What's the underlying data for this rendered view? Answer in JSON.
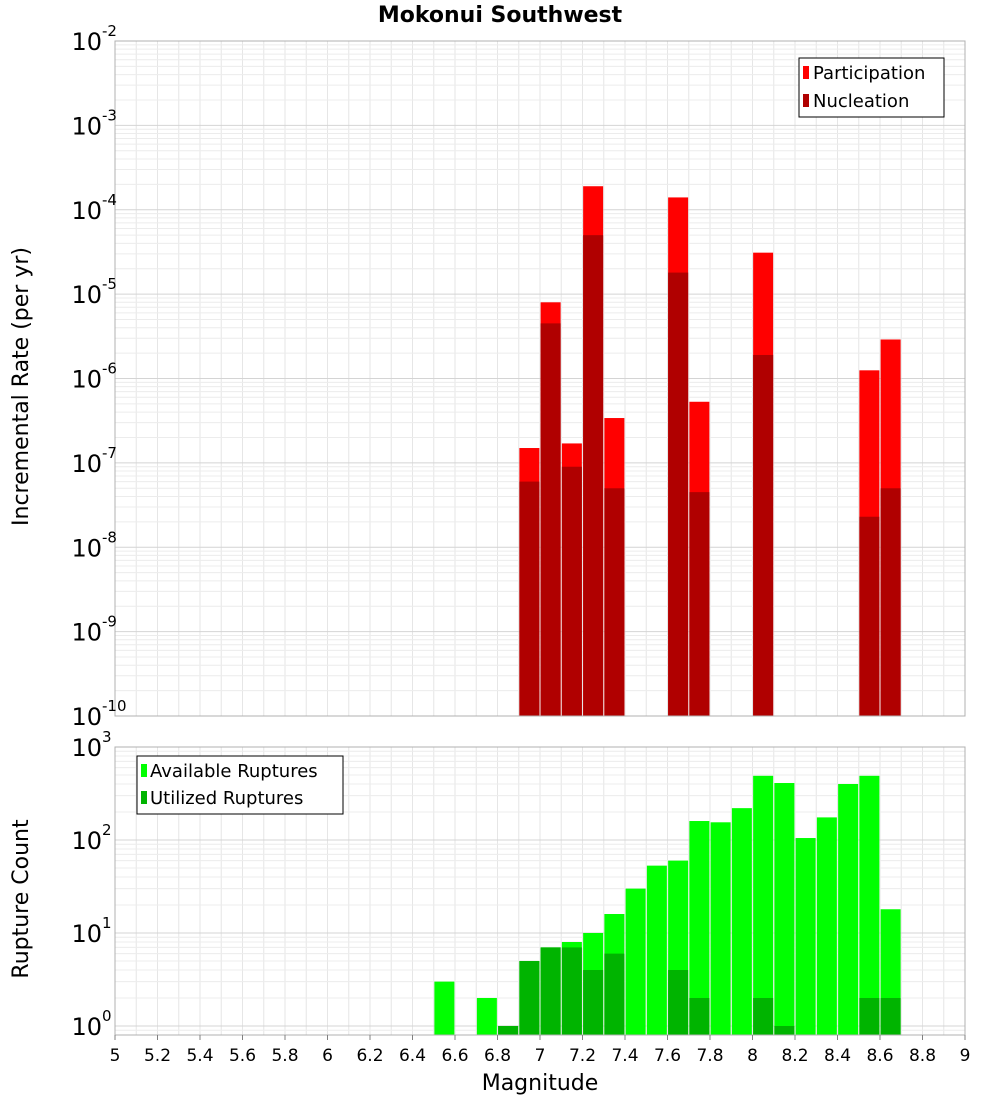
{
  "chart_data": [
    {
      "type": "bar",
      "title": "Mokonui Southwest",
      "ylabel": "Incremental Rate (per yr)",
      "xlabel": "",
      "yscale": "log",
      "ylim": [
        1e-10,
        0.01
      ],
      "xlim": [
        5,
        9
      ],
      "grid": true,
      "legend_position": "top-right",
      "x": [
        6.95,
        7.05,
        7.15,
        7.25,
        7.35,
        7.65,
        7.75,
        8.05,
        8.55,
        8.65
      ],
      "series": [
        {
          "name": "Participation",
          "color": "#ff0000",
          "values": [
            1.5e-07,
            8e-06,
            1.7e-07,
            0.00019,
            3.4e-07,
            0.00014,
            5.3e-07,
            3.1e-05,
            1.25e-06,
            2.9e-06
          ]
        },
        {
          "name": "Nucleation",
          "color": "#b00000",
          "values": [
            6e-08,
            4.5e-06,
            9e-08,
            5e-05,
            5e-08,
            1.8e-05,
            4.5e-08,
            1.9e-06,
            2.3e-08,
            5e-08
          ]
        }
      ],
      "ytick_labels": [
        "10",
        "10",
        "10",
        "10",
        "10",
        "10",
        "10",
        "10",
        "10"
      ],
      "ytick_exponents": [
        "-10",
        "-9",
        "-8",
        "-7",
        "-6",
        "-5",
        "-4",
        "-3",
        "-2"
      ]
    },
    {
      "type": "bar",
      "title": "",
      "ylabel": "Rupture Count",
      "xlabel": "Magnitude",
      "yscale": "log",
      "ylim": [
        0.8,
        1000
      ],
      "xlim": [
        5,
        9
      ],
      "grid": true,
      "legend_position": "top-left",
      "x": [
        6.55,
        6.75,
        6.85,
        6.95,
        7.05,
        7.15,
        7.25,
        7.35,
        7.45,
        7.55,
        7.65,
        7.75,
        7.85,
        7.95,
        8.05,
        8.15,
        8.25,
        8.35,
        8.45,
        8.55,
        8.65
      ],
      "series": [
        {
          "name": "Available Ruptures",
          "color": "#00ff00",
          "values": [
            3,
            2,
            1,
            5,
            7,
            8,
            10,
            16,
            30,
            53,
            60,
            160,
            155,
            220,
            490,
            410,
            105,
            175,
            400,
            490,
            18
          ]
        },
        {
          "name": "Utilized Ruptures",
          "color": "#00b400",
          "values": [
            0,
            0,
            1,
            5,
            7,
            7,
            4,
            6,
            0,
            0,
            4,
            2,
            0,
            0,
            2,
            1,
            0,
            0,
            0,
            2,
            2
          ]
        }
      ],
      "ytick_labels": [
        "10",
        "10",
        "10",
        "10"
      ],
      "ytick_exponents": [
        "0",
        "1",
        "2",
        "3"
      ],
      "xtick_labels": [
        "5",
        "5.2",
        "5.4",
        "5.6",
        "5.8",
        "6",
        "6.2",
        "6.4",
        "6.6",
        "6.8",
        "7",
        "7.2",
        "7.4",
        "7.6",
        "7.8",
        "8",
        "8.2",
        "8.4",
        "8.6",
        "8.8",
        "9"
      ]
    }
  ]
}
